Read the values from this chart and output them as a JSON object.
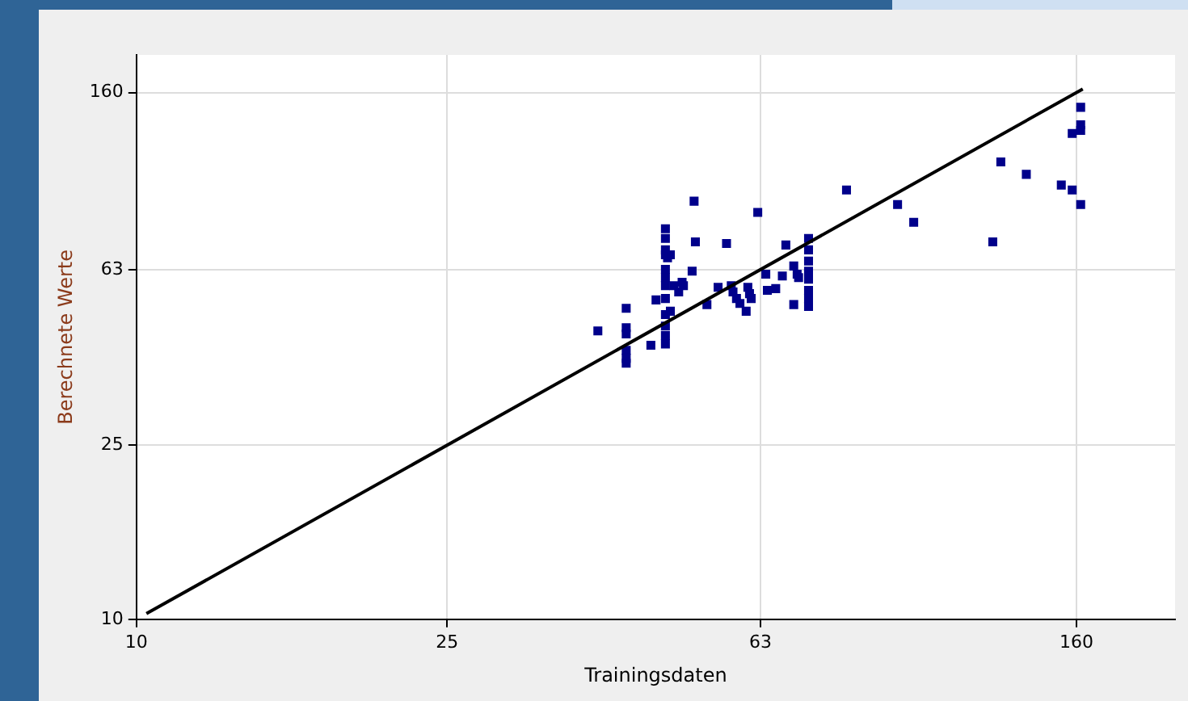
{
  "chart_data": {
    "type": "scatter",
    "xlabel": "Trainingsdaten",
    "ylabel": "Berechnete Werte",
    "log": "xy",
    "grid": true,
    "xlim": [
      10,
      214
    ],
    "ylim": [
      10,
      195
    ],
    "xticks": [
      10,
      25,
      63,
      160
    ],
    "yticks": [
      10,
      25,
      63,
      160
    ],
    "series": [
      {
        "marker": "square",
        "color": "#00008b",
        "x": [
          39.0,
          42.4,
          42.4,
          42.4,
          42.4,
          42.4,
          42.4,
          45.6,
          46.3,
          47.6,
          47.6,
          47.6,
          47.6,
          47.9,
          48.3,
          47.6,
          47.6,
          47.6,
          48.8,
          47.6,
          48.3,
          47.6,
          47.6,
          47.6,
          47.6,
          51.8,
          52.0,
          51.5,
          50.0,
          50.2,
          49.5,
          53.8,
          55.6,
          57.0,
          57.8,
          58.1,
          58.7,
          59.3,
          60.7,
          61.0,
          61.3,
          60.4,
          62.5,
          64.3,
          65.9,
          64.0,
          67.2,
          67.9,
          69.5,
          70.2,
          70.5,
          69.5,
          72.6,
          72.6,
          72.6,
          72.6,
          72.6,
          72.6,
          72.6,
          72.6,
          81.2,
          94.4,
          99.0,
          125,
          128,
          138,
          153,
          158,
          162,
          162,
          162,
          162,
          158
        ],
        "values": [
          45.6,
          51.4,
          46.4,
          44.9,
          41.2,
          39.5,
          38.5,
          42.3,
          53.7,
          78.1,
          74.2,
          69.9,
          68.1,
          67.0,
          68.1,
          63.1,
          60.4,
          57.9,
          57.9,
          54.1,
          50.6,
          49.7,
          46.8,
          44.5,
          42.6,
          90.3,
          72.9,
          62.5,
          58.9,
          57.9,
          56.0,
          52.4,
          57.4,
          72.3,
          57.9,
          56.0,
          54.1,
          52.7,
          57.4,
          55.5,
          54.1,
          50.6,
          85.1,
          56.5,
          57.0,
          61.5,
          60.9,
          71.7,
          64.2,
          61.5,
          60.4,
          52.4,
          74.2,
          69.9,
          65.9,
          62.5,
          59.9,
          56.5,
          54.1,
          51.9,
          95.8,
          88.7,
          80.8,
          72.9,
          111,
          104,
          98.3,
          95.8,
          88.7,
          148,
          135,
          131,
          129
        ]
      },
      {
        "type": "line",
        "color": "#000000",
        "x": [
          10.3,
          163
        ],
        "values": [
          10.3,
          163
        ]
      }
    ]
  }
}
